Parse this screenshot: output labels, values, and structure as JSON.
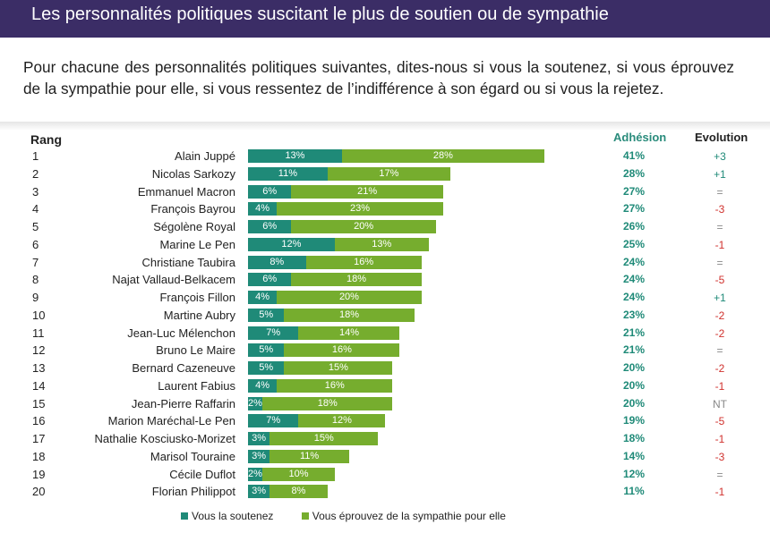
{
  "header": {
    "title": "Les personnalités politiques suscitant le plus de soutien ou de sympathie"
  },
  "question": "Pour chacune des personnalités politiques suivantes, dites-nous si vous la soutenez, si vous éprouvez de la sympathie pour elle, si vous ressentez de l’indifférence à son égard ou si vous la rejetez.",
  "columns": {
    "rank": "Rang",
    "adhesion": "Adhésion",
    "evolution": "Evolution"
  },
  "colors": {
    "header_bg": "#3b2d66",
    "support": "#1f8a78",
    "sympathy": "#76ad2e",
    "positive": "#1f8a78",
    "negative": "#d0312d",
    "neutral": "#888888"
  },
  "chart_data": {
    "type": "bar",
    "orientation": "horizontal",
    "stacked": true,
    "xlim": [
      0,
      45
    ],
    "legend_position": "bottom",
    "categories": [
      "Alain Juppé",
      "Nicolas Sarkozy",
      "Emmanuel Macron",
      "François Bayrou",
      "Ségolène Royal",
      "Marine Le Pen",
      "Christiane Taubira",
      "Najat Vallaud-Belkacem",
      "François Fillon",
      "Martine Aubry",
      "Jean-Luc Mélenchon",
      "Bruno Le Maire",
      "Bernard Cazeneuve",
      "Laurent Fabius",
      "Jean-Pierre Raffarin",
      "Marion Maréchal-Le Pen",
      "Nathalie Kosciusko-Morizet",
      "Marisol Touraine",
      "Cécile Duflot",
      "Florian Philippot"
    ],
    "ranks": [
      "1",
      "2",
      "3",
      "4",
      "5",
      "6",
      "7",
      "8",
      "9",
      "10",
      "11",
      "12",
      "13",
      "14",
      "15",
      "16",
      "17",
      "18",
      "19",
      "20"
    ],
    "series": [
      {
        "name": "Vous la soutenez",
        "color": "#1f8a78",
        "values": [
          13,
          11,
          6,
          4,
          6,
          12,
          8,
          6,
          4,
          5,
          7,
          5,
          5,
          4,
          2,
          7,
          3,
          3,
          2,
          3
        ]
      },
      {
        "name": "Vous éprouvez de la sympathie pour elle",
        "color": "#76ad2e",
        "values": [
          28,
          17,
          21,
          23,
          20,
          13,
          16,
          18,
          20,
          18,
          14,
          16,
          15,
          16,
          18,
          12,
          15,
          11,
          10,
          8
        ]
      }
    ],
    "adhesion": [
      "41%",
      "28%",
      "27%",
      "27%",
      "26%",
      "25%",
      "24%",
      "24%",
      "24%",
      "23%",
      "21%",
      "21%",
      "20%",
      "20%",
      "20%",
      "19%",
      "18%",
      "14%",
      "12%",
      "11%"
    ],
    "evolution": [
      "+3",
      "+1",
      "=",
      "-3",
      "=",
      "-1",
      "=",
      "-5",
      "+1",
      "-2",
      "-2",
      "=",
      "-2",
      "-1",
      "NT",
      "-5",
      "-1",
      "-3",
      "=",
      "-1"
    ]
  }
}
